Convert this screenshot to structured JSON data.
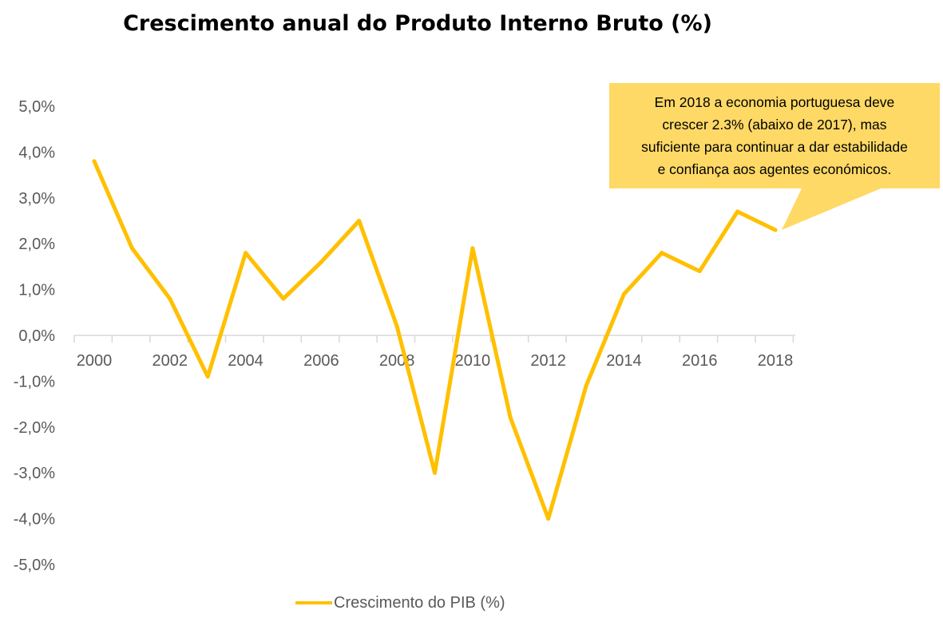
{
  "chart_data": {
    "type": "line",
    "title": "Crescimento anual do Produto Interno Bruto (%)",
    "xlabel": "",
    "ylabel": "",
    "ylim": [
      -5,
      5
    ],
    "y_ticks": [
      "5,0%",
      "4,0%",
      "3,0%",
      "2,0%",
      "1,0%",
      "0,0%",
      "-1,0%",
      "-2,0%",
      "-3,0%",
      "-4,0%",
      "-5,0%"
    ],
    "y_tick_values": [
      5,
      4,
      3,
      2,
      1,
      0,
      -1,
      -2,
      -3,
      -4,
      -5
    ],
    "x_tick_labels": [
      "2000",
      "2002",
      "2004",
      "2006",
      "2008",
      "2010",
      "2012",
      "2014",
      "2016",
      "2018"
    ],
    "x": [
      2000,
      2001,
      2002,
      2003,
      2004,
      2005,
      2006,
      2007,
      2008,
      2009,
      2010,
      2011,
      2012,
      2013,
      2014,
      2015,
      2016,
      2017,
      2018
    ],
    "series": [
      {
        "name": "Crescimento do PIB (%)",
        "color": "#FFC000",
        "values": [
          3.8,
          1.9,
          0.8,
          -0.9,
          1.8,
          0.8,
          1.6,
          2.5,
          0.2,
          -3.0,
          1.9,
          -1.8,
          -4.0,
          -1.1,
          0.9,
          1.8,
          1.4,
          2.7,
          2.3
        ]
      }
    ],
    "grid": false,
    "legend_position": "bottom",
    "annotation": {
      "text": "Em 2018 a economia portuguesa deve\ncrescer 2.3% (abaixo de 2017), mas\nsuficiente para continuar a dar estabilidade\ne confiança aos agentes económicos.",
      "background": "#FFD966",
      "points_to": 2018
    }
  }
}
